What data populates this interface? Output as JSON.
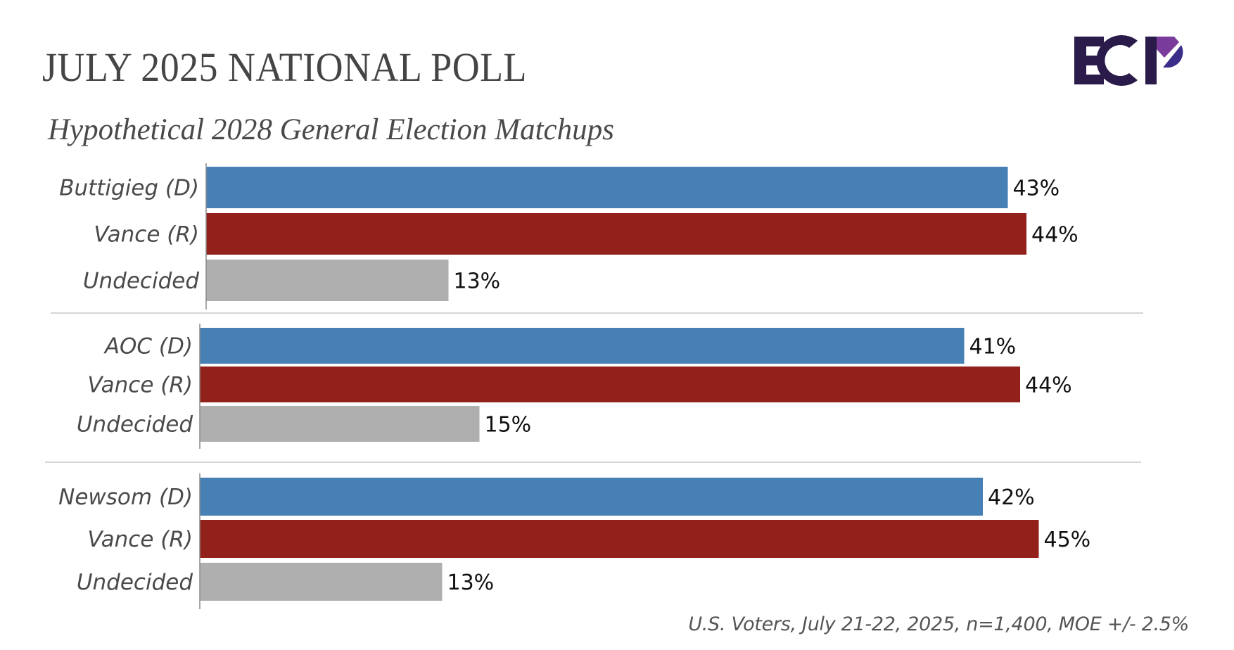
{
  "header": {
    "title": "JULY 2025 NATIONAL POLL",
    "subtitle": "Hypothetical 2028 General Election Matchups",
    "logo": "ECP"
  },
  "footnote": "U.S. Voters, July 21-22, 2025, n=1,400, MOE +/- 2.5%",
  "colors": {
    "democrat": "#4680B5",
    "republican": "#93211B",
    "undecided": "#B0AFAF",
    "logo_dark": "#2A1B4A",
    "logo_purple": "#7A3C9A",
    "logo_blue": "#3A2D8A"
  },
  "chart_data": {
    "type": "bar",
    "orientation": "horizontal",
    "title": "Hypothetical 2028 General Election Matchups",
    "unit": "%",
    "xlim": [
      0,
      50
    ],
    "grid": false,
    "groups": [
      {
        "name": "Buttigieg vs Vance",
        "categories": [
          "Buttigieg (D)",
          "Vance (R)",
          "Undecided"
        ],
        "values": [
          43,
          44,
          13
        ],
        "labels": [
          "43%",
          "44%",
          "13%"
        ],
        "parties": [
          "democrat",
          "republican",
          "undecided"
        ]
      },
      {
        "name": "AOC vs Vance",
        "categories": [
          "AOC (D)",
          "Vance (R)",
          "Undecided"
        ],
        "values": [
          41,
          44,
          15
        ],
        "labels": [
          "41%",
          "44%",
          "15%"
        ],
        "parties": [
          "democrat",
          "republican",
          "undecided"
        ]
      },
      {
        "name": "Newsom vs Vance",
        "categories": [
          "Newsom (D)",
          "Vance (R)",
          "Undecided"
        ],
        "values": [
          42,
          45,
          13
        ],
        "labels": [
          "42%",
          "45%",
          "13%"
        ],
        "parties": [
          "democrat",
          "republican",
          "undecided"
        ]
      }
    ]
  }
}
